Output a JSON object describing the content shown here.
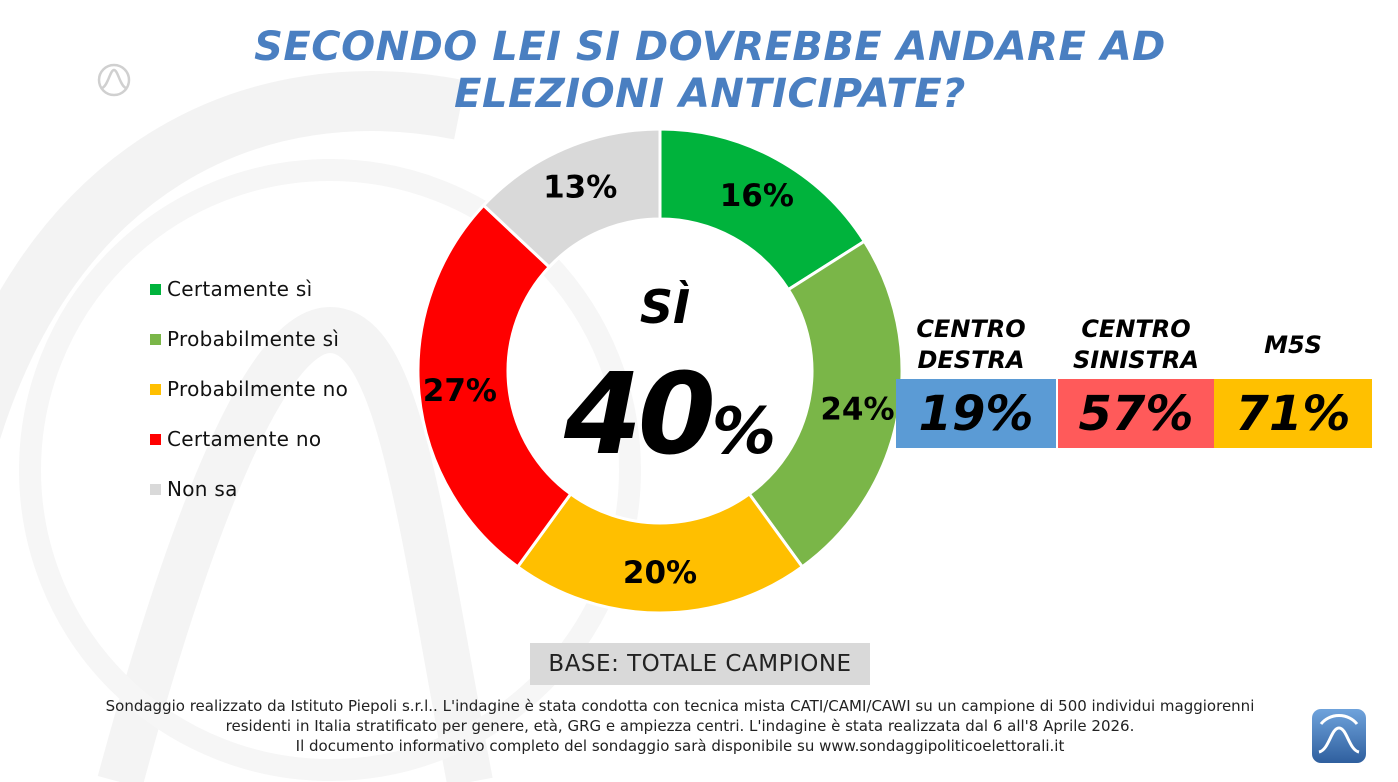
{
  "title": "SECONDO LEI SI DOVREBBE ANDARE AD ELEZIONI ANTICIPATE?",
  "chart_data": {
    "type": "pie",
    "title": "SECONDO LEI SI DOVREBBE ANDARE AD ELEZIONI ANTICIPATE?",
    "categories": [
      "Certamente sì",
      "Probabilmente sì",
      "Probabilmente no",
      "Certamente no",
      "Non sa"
    ],
    "values": [
      16,
      24,
      20,
      27,
      13
    ],
    "unit": "%",
    "colors": [
      "#00b33c",
      "#7ab648",
      "#ffbf00",
      "#ff0000",
      "#d9d9d9"
    ],
    "legend": "left",
    "center": {
      "label": "SÌ",
      "value": "40",
      "unit": "%"
    }
  },
  "groups": [
    {
      "label_line1": "CENTRO",
      "label_line2": "DESTRA",
      "value": "19%",
      "color": "#5b9bd5"
    },
    {
      "label_line1": "CENTRO",
      "label_line2": "SINISTRA",
      "value": "57%",
      "color": "#ff5a5a"
    },
    {
      "label_line1": "M5S",
      "label_line2": "",
      "value": "71%",
      "color": "#ffc000"
    }
  ],
  "base": "BASE: TOTALE CAMPIONE",
  "footnote": {
    "line1": "Sondaggio realizzato da Istituto Piepoli s.r.l.. L'indagine è stata condotta con tecnica mista CATI/CAMI/CAWI su un campione di 500 individui maggiorenni",
    "line2": "residenti in Italia stratificato per genere, età, GRG e ampiezza centri. L'indagine è stata realizzata dal 6 all'8 Aprile 2026.",
    "line3": "Il documento informativo completo del sondaggio sarà disponibile su www.sondaggipoliticoelettorali.it"
  },
  "icons": {
    "logo": "piepoli-logo-icon",
    "watermark": "watermark-icon"
  }
}
